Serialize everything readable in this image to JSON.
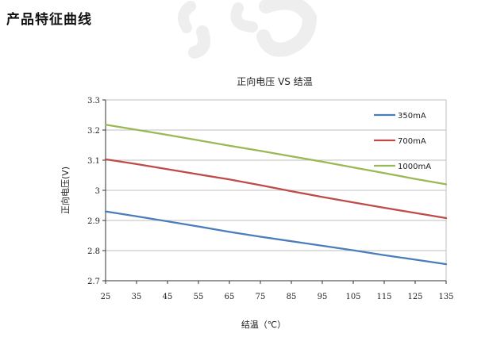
{
  "page": {
    "heading": "产品特征曲线"
  },
  "chart_data": {
    "type": "line",
    "title": "正向电压 VS 结温",
    "xlabel": "结温（℃）",
    "ylabel": "正向电压(V)",
    "xlim": [
      25,
      135
    ],
    "ylim": [
      2.7,
      3.3
    ],
    "x_ticks": [
      25,
      35,
      45,
      55,
      65,
      75,
      85,
      95,
      105,
      115,
      125,
      135
    ],
    "x_tick_labels": [
      "25",
      "35",
      "45",
      "55",
      "65",
      "75",
      "85",
      "95",
      "105",
      "115",
      "125",
      "135"
    ],
    "y_ticks": [
      2.7,
      2.8,
      2.9,
      3.0,
      3.1,
      3.2,
      3.3
    ],
    "y_tick_labels": [
      "2.7",
      "2.8",
      "2.9",
      "3",
      "3.1",
      "3.2",
      "3.3"
    ],
    "grid": true,
    "legend_position": "top-right",
    "x": [
      25,
      35,
      45,
      55,
      65,
      75,
      85,
      95,
      105,
      115,
      125,
      135
    ],
    "series": [
      {
        "name": "350mA",
        "color": "#4a7ebb",
        "values": [
          2.93,
          2.914,
          2.897,
          2.88,
          2.862,
          2.846,
          2.831,
          2.816,
          2.801,
          2.785,
          2.77,
          2.755
        ]
      },
      {
        "name": "700mA",
        "color": "#be4b48",
        "values": [
          3.103,
          3.087,
          3.07,
          3.053,
          3.036,
          3.017,
          2.997,
          2.978,
          2.96,
          2.942,
          2.925,
          2.908
        ]
      },
      {
        "name": "1000mA",
        "color": "#98b954",
        "values": [
          3.218,
          3.201,
          3.184,
          3.166,
          3.148,
          3.131,
          3.113,
          3.095,
          3.076,
          3.057,
          3.038,
          3.02
        ]
      }
    ]
  }
}
